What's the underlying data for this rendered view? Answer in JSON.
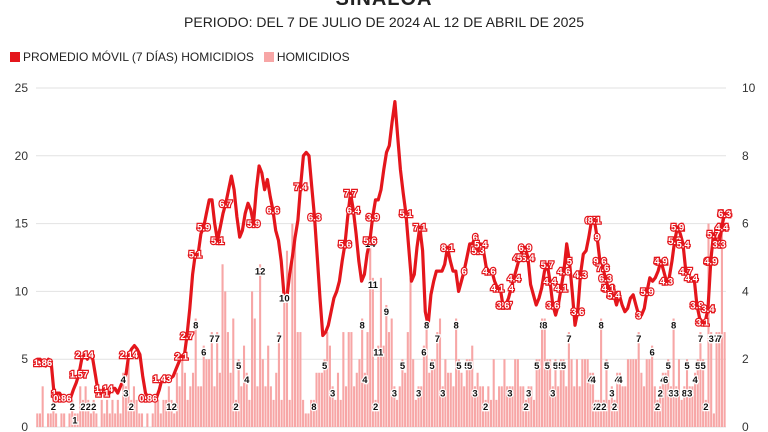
{
  "title": "SINALOA",
  "subtitle": "PERIODO: DEL 7 DE JULIO DE 2024 AL 12 DE ABRIL DE 2025",
  "colors": {
    "line": "#e4161c",
    "bar": "#f7a6a6",
    "label_text": "#ffffff"
  },
  "chart_data": {
    "type": "bar",
    "x_range": [
      "2024-07-07",
      "2025-04-12"
    ],
    "legend_position": "top-left",
    "grid": true,
    "y_left": {
      "ylim": [
        0,
        25
      ],
      "ticks": [
        "0",
        "5",
        "10",
        "15",
        "20",
        "25"
      ]
    },
    "y_right": {
      "ylim": [
        0,
        10
      ],
      "ticks": [
        "0",
        "2",
        "4",
        "6",
        "8",
        "10"
      ]
    },
    "series": [
      {
        "name": "PROMEDIO MÓVIL (7 DÍAS) HOMICIDIOS",
        "type": "line",
        "axis": "right",
        "values": [
          2.0,
          2.0,
          1.9,
          1.8,
          2.0,
          1.9,
          1.0,
          1.0,
          1.0,
          0.86,
          0.86,
          0.86,
          0.86,
          1.1,
          1.3,
          1.57,
          2.0,
          2.14,
          2.0,
          2.14,
          2.0,
          1.5,
          1.0,
          1.0,
          1.14,
          1.0,
          1.0,
          1.14,
          1.14,
          1.0,
          1.2,
          1.4,
          1.57,
          2.14,
          2.3,
          2.4,
          2.3,
          2.14,
          1.5,
          1.0,
          0.86,
          0.86,
          0.86,
          0.86,
          1.1,
          1.43,
          1.43,
          1.43,
          1.43,
          1.5,
          1.7,
          1.9,
          2.1,
          2.1,
          2.7,
          3.5,
          4.5,
          5.1,
          5.1,
          5.7,
          5.9,
          6.3,
          6.7,
          6.7,
          6.0,
          5.5,
          5.9,
          6.3,
          6.6,
          7.0,
          7.4,
          7.0,
          6.2,
          5.6,
          5.8,
          6.3,
          6.6,
          6.4,
          6.0,
          7.0,
          7.7,
          7.5,
          7.0,
          7.3,
          6.8,
          6.4,
          5.8,
          5.5,
          4.9,
          3.9,
          3.8,
          4.5,
          5.0,
          5.6,
          6.1,
          7.1,
          8.0,
          8.1,
          8.0,
          7.1,
          6.2,
          5.0,
          3.8,
          2.7,
          2.8,
          3.0,
          3.4,
          3.8,
          4.0,
          4.3,
          4.9,
          5.4,
          6.2,
          6.9,
          6.4,
          5.7,
          4.9,
          4.3,
          4.5,
          5.1,
          5.5,
          6.2,
          6.7,
          6.7,
          7.0,
          7.6,
          8.1,
          8.3,
          9.0,
          9.6,
          8.6,
          7.6,
          6.9,
          6.3,
          5.3,
          4.3,
          4.5,
          5.3,
          5.9,
          5.2,
          3.4,
          3.0,
          3.9,
          4.3,
          4.6,
          4.6,
          4.6,
          4.8,
          5.3,
          4.9,
          4.6,
          4.6,
          4.0,
          4.3,
          4.6,
          5.0,
          5.4,
          5.4,
          5.6,
          5.2,
          5.4,
          5.2,
          4.7,
          4.6,
          4.6,
          4.3,
          4.1,
          4.1,
          3.6,
          3.6,
          3.8,
          4.1,
          4.4,
          4.7,
          5.0,
          5.2,
          5.3,
          5.0,
          4.2,
          3.9,
          3.6,
          3.8,
          4.1,
          4.6,
          4.8,
          4.3,
          3.6,
          3.3,
          3.6,
          4.1,
          4.6,
          5.4,
          4.9,
          4.0,
          3.0,
          3.4,
          4.5,
          5.1,
          5.2,
          5.6,
          6.1,
          6.1,
          5.6,
          4.9,
          4.7,
          4.4,
          4.1,
          3.8,
          3.9,
          3.6,
          3.9,
          3.6,
          3.4,
          3.5,
          3.8,
          3.9,
          3.6,
          3.3,
          3.3,
          3.5,
          4.0,
          4.4,
          4.3,
          4.4,
          4.6,
          4.9,
          4.6,
          4.3,
          4.4,
          4.9,
          5.5,
          5.9,
          5.7,
          5.4,
          4.6,
          4.3,
          4.4,
          4.4,
          3.6,
          3.2,
          3.1,
          3.1,
          3.5,
          4.9,
          5.7,
          5.5,
          5.4,
          5.9,
          6.3
        ]
      },
      {
        "name": "HOMICIDIOS",
        "type": "bar",
        "axis": "left",
        "values": [
          1,
          1,
          3,
          0,
          1,
          1,
          2,
          1,
          0,
          1,
          1,
          0,
          1,
          2,
          1,
          1,
          3,
          2,
          3,
          2,
          1,
          2,
          1,
          0,
          2,
          1,
          2,
          1,
          2,
          1,
          2,
          1,
          4,
          3,
          5,
          2,
          3,
          2,
          1,
          1,
          0,
          1,
          0,
          1,
          2,
          2,
          1,
          2,
          2,
          3,
          2,
          1,
          4,
          3,
          5,
          4,
          2,
          3,
          4,
          8,
          3,
          3,
          6,
          5,
          5,
          7,
          3,
          7,
          4,
          12,
          10,
          7,
          4,
          8,
          2,
          5,
          3,
          6,
          4,
          2,
          10,
          8,
          3,
          12,
          5,
          3,
          6,
          3,
          2,
          4,
          7,
          2,
          10,
          13,
          2,
          15,
          14,
          7,
          7,
          2,
          1,
          1,
          2,
          2,
          4,
          4,
          4,
          5,
          7,
          6,
          3,
          2,
          4,
          2,
          7,
          3,
          7,
          7,
          3,
          4,
          5,
          8,
          4,
          7,
          14,
          11,
          2,
          6,
          11,
          6,
          9,
          7,
          8,
          3,
          2,
          3,
          5,
          4,
          7,
          11,
          5,
          2,
          3,
          3,
          6,
          8,
          4,
          5,
          5,
          7,
          8,
          3,
          5,
          4,
          4,
          3,
          8,
          5,
          4,
          3,
          5,
          5,
          6,
          3,
          4,
          3,
          3,
          2,
          3,
          2,
          5,
          2,
          3,
          3,
          5,
          3,
          3,
          3,
          5,
          5,
          3,
          3,
          2,
          3,
          3,
          2,
          5,
          5,
          8,
          8,
          5,
          5,
          3,
          5,
          3,
          5,
          5,
          3,
          7,
          5,
          3,
          5,
          3,
          5,
          5,
          5,
          4,
          4,
          2,
          2,
          8,
          2,
          5,
          2,
          3,
          2,
          4,
          4,
          3,
          3,
          5,
          5,
          5,
          5,
          7,
          4,
          3,
          5,
          5,
          6,
          3,
          2,
          3,
          4,
          4,
          5,
          3,
          8,
          3,
          5,
          2,
          3,
          5,
          3,
          3,
          4,
          5,
          7,
          5,
          2,
          15,
          7,
          1,
          7,
          7,
          16,
          7
        ]
      }
    ]
  },
  "line_labels": [
    "1.86",
    "1",
    "0.86",
    "1.57",
    "2.14",
    "1",
    "1.14",
    "1",
    "2.14",
    "0.86",
    "1.43",
    "2.1",
    "2.7",
    "5.1",
    "5.9",
    "5.1",
    "6.7",
    "5.9",
    "6.6",
    "7.4",
    "6.3",
    "5.6",
    "7.7",
    "6.4",
    "5.6",
    "3.9",
    "5.1",
    "7.1",
    "8.1",
    "5.3",
    "3.6",
    "2.7",
    "4",
    "4.9",
    "6.9",
    "6.4",
    "5.7",
    "5",
    "4.3",
    "6.7",
    "8.1",
    "9",
    "9.6",
    "7.6",
    "6.3",
    "5.3",
    "4.3",
    "5.9",
    "5.3",
    "3.4",
    "4.6",
    "4",
    "4.6",
    "5.4",
    "6",
    "6",
    "5.4",
    "4.6",
    "4.1",
    "3.6",
    "4.4",
    "5",
    "4.4",
    "3.6",
    "4.1",
    "4.6",
    "3.6",
    "4.1",
    "5.4",
    "3",
    "5.1",
    "6.1",
    "4.7",
    "3.9",
    "3.4",
    "3.9",
    "3.3",
    "4.4",
    "4.4",
    "4.9",
    "4.3",
    "5.9",
    "5.4",
    "4.4",
    "3.1",
    "4.9",
    "5.7",
    "6.3"
  ],
  "bar_labels": [
    "2",
    "2",
    "1",
    "2",
    "2",
    "2",
    "4",
    "3",
    "2",
    "8",
    "6",
    "7",
    "7",
    "5",
    "4",
    "12",
    "10",
    "8",
    "4",
    "2",
    "12",
    "6",
    "2",
    "7",
    "10",
    "5",
    "8",
    "3",
    "6",
    "2",
    "7",
    "8",
    "3",
    "2",
    "4",
    "4",
    "7",
    "6",
    "2",
    "4",
    "7",
    "7",
    "8",
    "3",
    "14",
    "11",
    "2",
    "9",
    "6",
    "2",
    "7",
    "2",
    "11",
    "5",
    "3",
    "8",
    "5",
    "7",
    "3",
    "8",
    "5",
    "5",
    "5",
    "3",
    "6",
    "5",
    "3",
    "3",
    "3",
    "3",
    "5",
    "5",
    "3",
    "2",
    "3",
    "5",
    "8",
    "8",
    "5",
    "3",
    "5",
    "5",
    "5",
    "7",
    "4",
    "4",
    "2",
    "2",
    "2",
    "5",
    "8",
    "4",
    "5",
    "5",
    "7",
    "2",
    "6",
    "3",
    "3",
    "8",
    "5",
    "3",
    "2",
    "3",
    "7",
    "7"
  ]
}
